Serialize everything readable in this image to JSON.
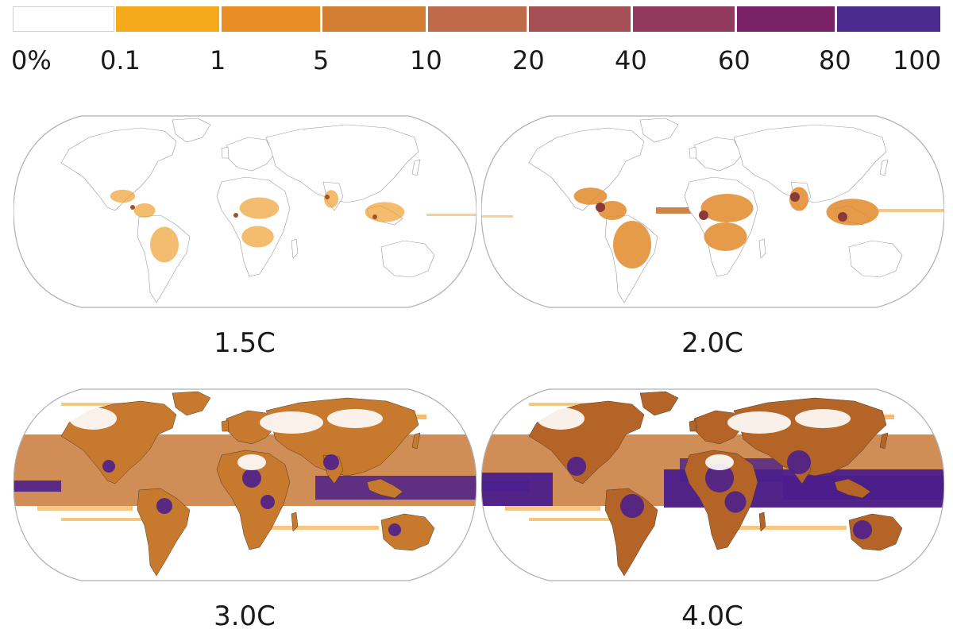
{
  "legend": {
    "ticks": [
      "0%",
      "0.1",
      "1",
      "5",
      "10",
      "20",
      "40",
      "60",
      "80",
      "100"
    ],
    "bins": [
      {
        "color": "#ffffff"
      },
      {
        "color": "#f5aa1c"
      },
      {
        "color": "#e68d25"
      },
      {
        "color": "#d37f33"
      },
      {
        "color": "#bf6a48"
      },
      {
        "color": "#a44f56"
      },
      {
        "color": "#92395e"
      },
      {
        "color": "#7a2268"
      },
      {
        "color": "#4a2a8c"
      }
    ]
  },
  "maps": [
    {
      "label": "1.5C",
      "intensity": 1
    },
    {
      "label": "2.0C",
      "intensity": 2
    },
    {
      "label": "3.0C",
      "intensity": 3
    },
    {
      "label": "4.0C",
      "intensity": 4
    }
  ]
}
